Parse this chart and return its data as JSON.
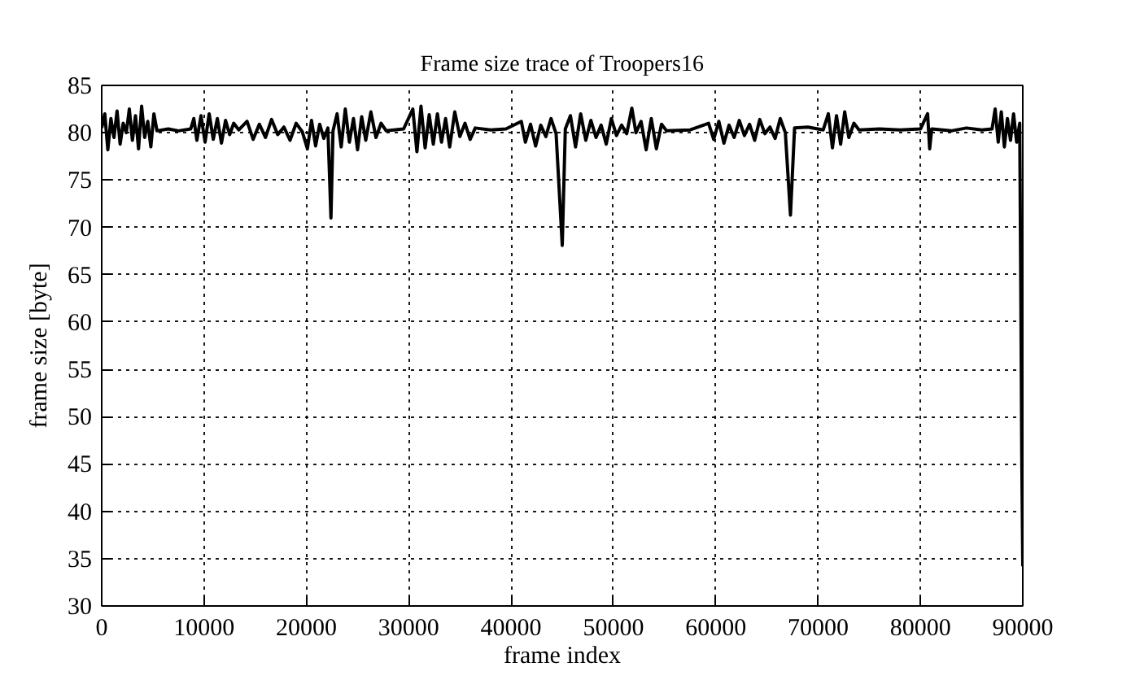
{
  "chart_data": {
    "type": "line",
    "title": "Frame size trace of Troopers16",
    "xlabel": "frame index",
    "ylabel": "frame size [byte]",
    "xlim": [
      0,
      90000
    ],
    "ylim": [
      30,
      85
    ],
    "xticks": [
      0,
      10000,
      20000,
      30000,
      40000,
      50000,
      60000,
      70000,
      80000,
      90000
    ],
    "yticks": [
      30,
      35,
      40,
      45,
      50,
      55,
      60,
      65,
      70,
      75,
      80,
      85
    ],
    "grid": true,
    "x": [
      0,
      300,
      600,
      900,
      1200,
      1500,
      1800,
      2100,
      2400,
      2700,
      3000,
      3300,
      3600,
      3900,
      4200,
      4500,
      4800,
      5100,
      5400,
      6500,
      7500,
      8700,
      9000,
      9300,
      9700,
      10100,
      10500,
      10900,
      11300,
      11700,
      12100,
      12500,
      12900,
      13400,
      14200,
      14800,
      15400,
      16000,
      16600,
      17200,
      17800,
      18400,
      19000,
      19600,
      20100,
      20500,
      20900,
      21300,
      21700,
      22100,
      22400,
      22600,
      23000,
      23400,
      23800,
      24200,
      24600,
      25000,
      25400,
      25800,
      26300,
      26800,
      27300,
      27800,
      29500,
      30400,
      30800,
      31200,
      31600,
      32000,
      32400,
      32800,
      33200,
      33600,
      34000,
      34500,
      35000,
      35500,
      36000,
      36500,
      38000,
      39500,
      41000,
      41400,
      41900,
      42400,
      42900,
      43400,
      43900,
      44400,
      45000,
      45300,
      45800,
      46300,
      46800,
      47300,
      47800,
      48300,
      48800,
      49300,
      49800,
      50300,
      50800,
      51300,
      51800,
      52200,
      52700,
      53200,
      53700,
      54200,
      54700,
      55200,
      57500,
      59300,
      59800,
      60300,
      60800,
      61300,
      61800,
      62300,
      62800,
      63300,
      63800,
      64300,
      64800,
      65300,
      65800,
      66300,
      66800,
      67300,
      67700,
      69000,
      70500,
      71000,
      71400,
      71800,
      72200,
      72600,
      73000,
      73500,
      74000,
      76000,
      78000,
      80000,
      80700,
      80900,
      81100,
      83000,
      84500,
      86000,
      87000,
      87300,
      87600,
      87900,
      88200,
      88500,
      88800,
      89100,
      89400,
      89700,
      89800,
      89900,
      90000
    ],
    "series": [
      {
        "color": "#000000",
        "values": [
          80.5,
          82.0,
          78.2,
          81.5,
          79.5,
          82.3,
          78.8,
          81.0,
          80.0,
          82.5,
          79.2,
          81.8,
          78.3,
          82.8,
          79.5,
          81.2,
          78.5,
          82.0,
          80.2,
          80.4,
          80.2,
          80.4,
          81.5,
          79.2,
          81.8,
          79.0,
          82.0,
          79.3,
          81.5,
          78.9,
          81.3,
          79.8,
          81.0,
          80.3,
          81.2,
          79.3,
          80.9,
          79.5,
          81.4,
          79.8,
          80.6,
          79.2,
          81.0,
          80.1,
          78.3,
          81.3,
          78.6,
          80.9,
          79.4,
          80.5,
          71.0,
          80.2,
          82.0,
          78.5,
          82.5,
          79.0,
          81.5,
          78.2,
          81.7,
          79.2,
          82.2,
          79.5,
          81.0,
          80.2,
          80.4,
          82.5,
          78.0,
          82.8,
          78.4,
          81.9,
          78.8,
          82.0,
          79.0,
          81.5,
          78.5,
          82.2,
          79.6,
          81.0,
          79.3,
          80.5,
          80.3,
          80.4,
          81.2,
          79.0,
          80.9,
          78.6,
          80.8,
          79.6,
          81.5,
          79.9,
          68.1,
          80.4,
          81.8,
          78.5,
          82.0,
          79.2,
          81.3,
          79.5,
          80.8,
          78.8,
          81.5,
          79.7,
          80.8,
          79.9,
          82.6,
          80.0,
          81.2,
          78.2,
          81.5,
          78.3,
          80.9,
          80.2,
          80.3,
          81.0,
          79.3,
          81.2,
          78.9,
          80.8,
          79.5,
          81.3,
          79.7,
          80.9,
          79.2,
          81.4,
          79.9,
          80.6,
          79.4,
          81.5,
          80.0,
          71.3,
          80.5,
          80.6,
          80.3,
          82.0,
          78.4,
          81.8,
          78.8,
          82.2,
          79.5,
          81.0,
          80.3,
          80.4,
          80.3,
          80.4,
          82.0,
          78.3,
          80.4,
          80.2,
          80.5,
          80.3,
          80.4,
          82.5,
          79.0,
          82.2,
          78.5,
          81.5,
          79.2,
          82.0,
          79.0,
          81.0,
          64.4,
          46.0,
          34.2
        ]
      }
    ]
  }
}
